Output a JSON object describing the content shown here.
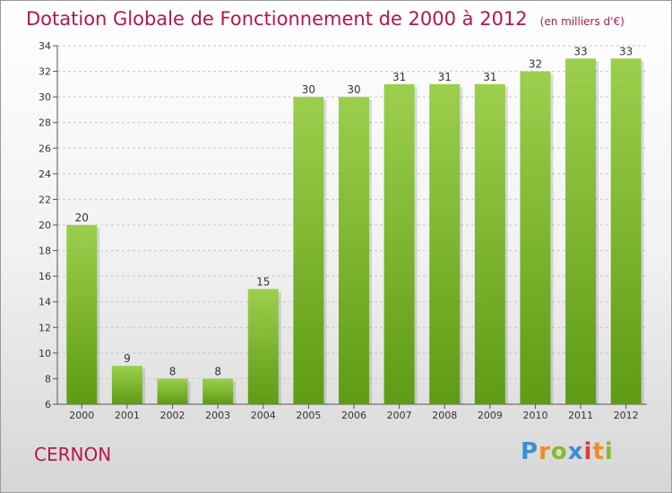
{
  "header": {
    "title": "Dotation Globale de Fonctionnement de 2000 à 2012",
    "subtitle": "(en milliers d'€)"
  },
  "commune": "CERNON",
  "logo_text": "Proxiti",
  "colors": {
    "bar_light": "#9ccf4d",
    "bar_dark": "#5e9b14",
    "title": "#b5174a"
  },
  "chart_data": {
    "type": "bar",
    "categories": [
      "2000",
      "2001",
      "2002",
      "2003",
      "2004",
      "2005",
      "2006",
      "2007",
      "2008",
      "2009",
      "2010",
      "2011",
      "2012"
    ],
    "values": [
      20,
      9,
      8,
      8,
      15,
      30,
      30,
      31,
      31,
      31,
      32,
      33,
      33
    ],
    "ylim": [
      6,
      34
    ],
    "yticks": [
      6,
      8,
      10,
      12,
      14,
      16,
      18,
      20,
      22,
      24,
      26,
      28,
      30,
      32,
      34
    ],
    "grid": "horizontal dashed",
    "data_labels": true
  }
}
